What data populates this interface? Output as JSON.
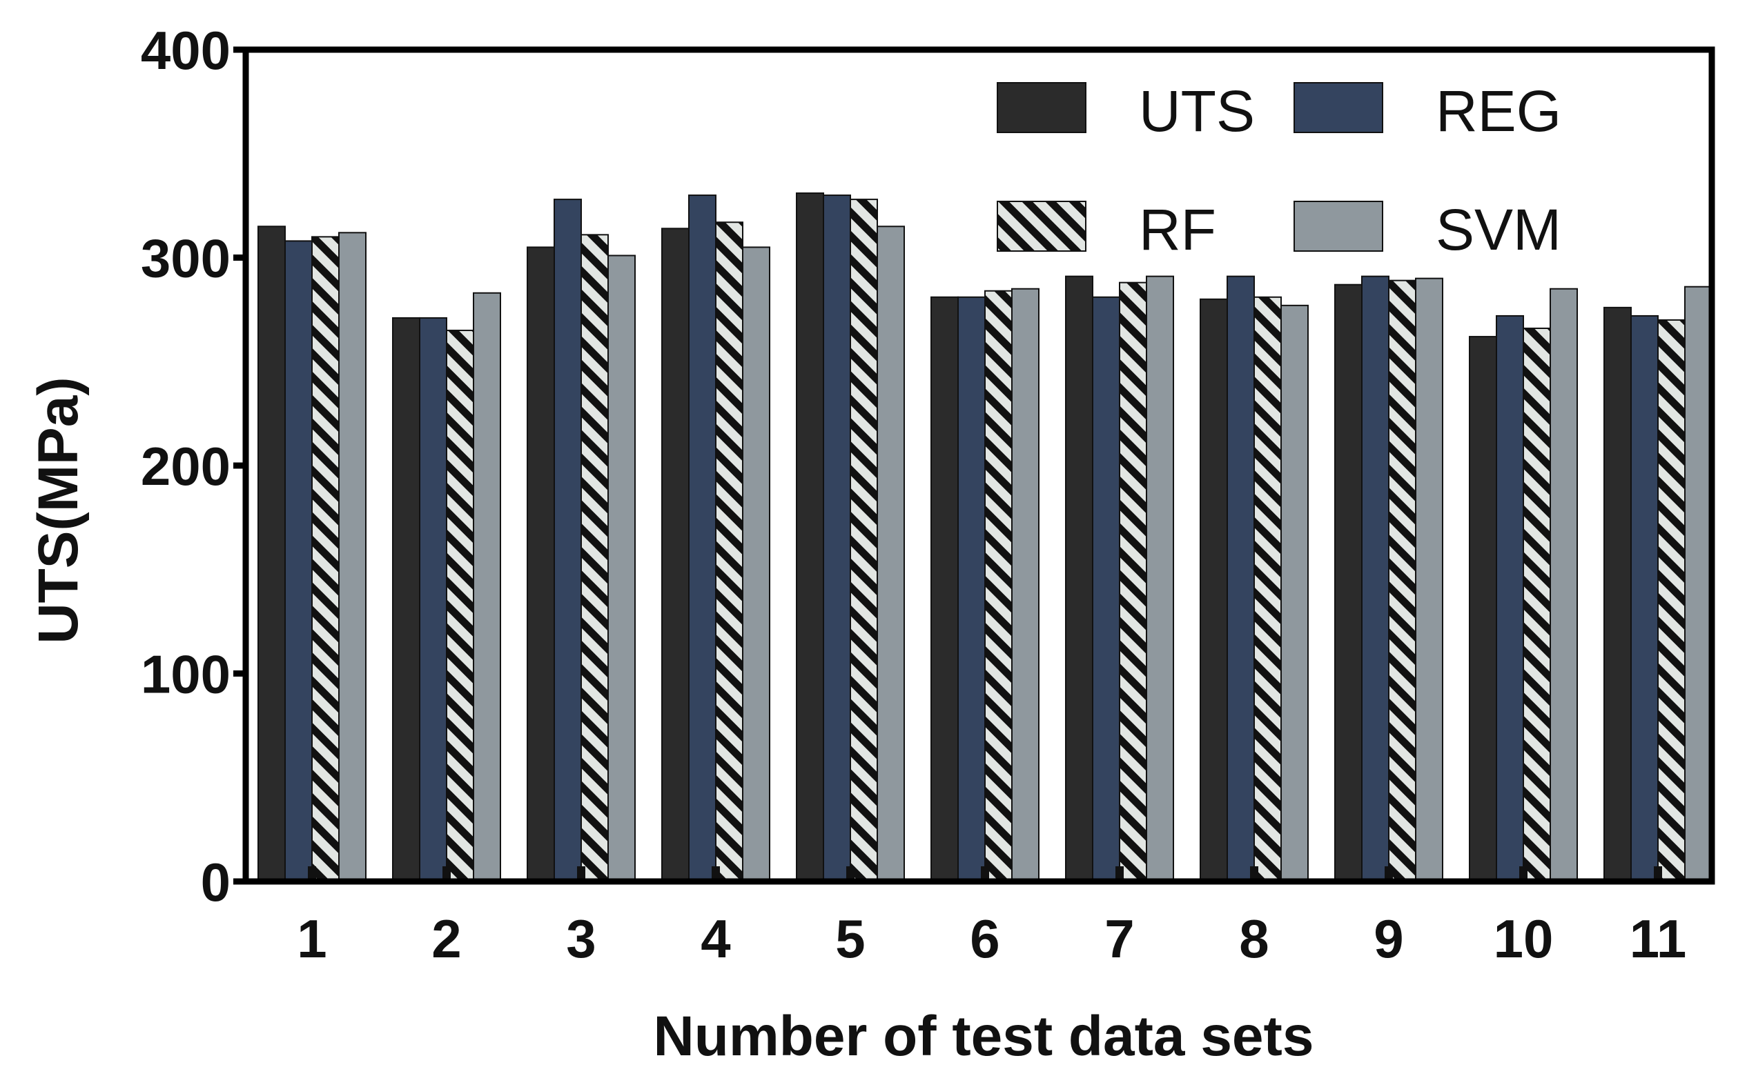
{
  "chart_data": {
    "type": "bar",
    "title": "",
    "xlabel": "Number of test data sets",
    "ylabel": "UTS(MPa)",
    "ylim": [
      0,
      400
    ],
    "yticks": [
      0,
      100,
      200,
      300,
      400
    ],
    "grid": false,
    "legend_position": "top-right",
    "categories": [
      "1",
      "2",
      "3",
      "4",
      "5",
      "6",
      "7",
      "8",
      "9",
      "10",
      "11"
    ],
    "series": [
      {
        "name": "UTS",
        "color": "#2b2b2b",
        "pattern": "solid",
        "values": [
          315,
          271,
          305,
          314,
          331,
          281,
          291,
          280,
          287,
          262,
          276
        ]
      },
      {
        "name": "REG",
        "color": "#34445f",
        "pattern": "solid",
        "values": [
          308,
          271,
          328,
          330,
          330,
          281,
          281,
          291,
          291,
          272,
          272
        ]
      },
      {
        "name": "RF",
        "color": "#e2e6e3",
        "pattern": "hatch",
        "values": [
          310,
          265,
          311,
          317,
          328,
          284,
          288,
          281,
          289,
          266,
          270
        ]
      },
      {
        "name": "SVM",
        "color": "#8f989e",
        "pattern": "solid",
        "values": [
          312,
          283,
          301,
          305,
          315,
          285,
          291,
          277,
          290,
          285,
          286
        ]
      }
    ]
  }
}
